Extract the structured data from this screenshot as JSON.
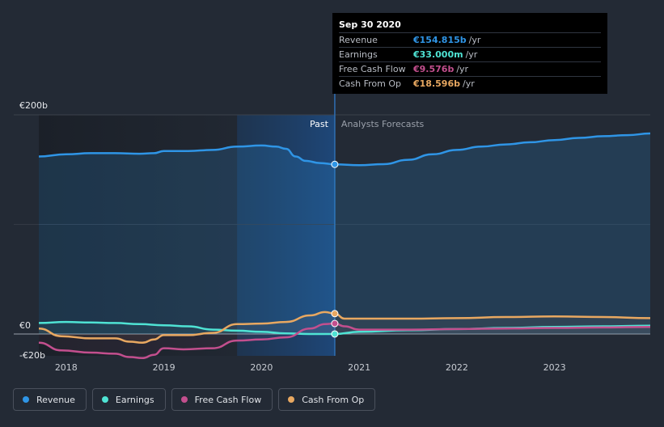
{
  "chart_data": {
    "type": "line",
    "currency_axis": {
      "ylim": [
        -20,
        200
      ],
      "y_ticks": [
        {
          "value": 200,
          "label": "€200b"
        },
        {
          "value": 0,
          "label": "€0"
        },
        {
          "value": -20,
          "label": "-€20b"
        }
      ]
    },
    "x_ticks": [
      {
        "value": 2018,
        "label": "2018"
      },
      {
        "value": 2019,
        "label": "2019"
      },
      {
        "value": 2020,
        "label": "2020"
      },
      {
        "value": 2021,
        "label": "2021"
      },
      {
        "value": 2022,
        "label": "2022"
      },
      {
        "value": 2023,
        "label": "2023"
      }
    ],
    "xlim": [
      2017.72,
      2023.98
    ],
    "divider": {
      "x": 2020.75,
      "past_label": "Past",
      "forecast_label": "Analysts Forecasts"
    },
    "highlight_range": [
      2019.75,
      2020.75
    ],
    "series": [
      {
        "name": "Revenue",
        "color": "#2f95e6",
        "x": [
          2017.72,
          2018.0,
          2018.25,
          2018.5,
          2018.75,
          2018.9,
          2019.0,
          2019.25,
          2019.5,
          2019.75,
          2020.0,
          2020.15,
          2020.25,
          2020.35,
          2020.45,
          2020.6,
          2020.75,
          2021.0,
          2021.25,
          2021.5,
          2021.75,
          2022.0,
          2022.25,
          2022.5,
          2022.75,
          2023.0,
          2023.25,
          2023.5,
          2023.75,
          2023.98
        ],
        "values": [
          162,
          164,
          165,
          165,
          164.5,
          165,
          167,
          167,
          168,
          171,
          172,
          171,
          169,
          162,
          158,
          156,
          154.8,
          154,
          155,
          159,
          164,
          168,
          171,
          173,
          175,
          177,
          179,
          180.5,
          181.5,
          183
        ]
      },
      {
        "name": "Earnings",
        "color": "#4fe3d4",
        "x": [
          2017.72,
          2018.0,
          2018.25,
          2018.5,
          2018.75,
          2019.0,
          2019.25,
          2019.5,
          2019.75,
          2020.0,
          2020.25,
          2020.5,
          2020.75,
          2021.0,
          2021.5,
          2022.0,
          2022.5,
          2023.0,
          2023.5,
          2023.98
        ],
        "values": [
          10,
          11,
          10.5,
          10,
          9,
          8,
          7,
          4,
          3,
          2,
          0.5,
          0,
          0.033,
          2,
          3.5,
          4.5,
          5.5,
          6.5,
          7,
          7.5
        ]
      },
      {
        "name": "Free Cash Flow",
        "color": "#c34f8e",
        "x": [
          2017.72,
          2017.95,
          2018.25,
          2018.5,
          2018.65,
          2018.78,
          2018.9,
          2019.0,
          2019.2,
          2019.5,
          2019.75,
          2020.0,
          2020.25,
          2020.5,
          2020.65,
          2020.75,
          2020.85,
          2021.0,
          2021.5,
          2022.0,
          2022.5,
          2023.0,
          2023.5,
          2023.98
        ],
        "values": [
          -8,
          -15,
          -17,
          -18,
          -21,
          -22,
          -19,
          -13,
          -14,
          -13,
          -6,
          -5,
          -3,
          5,
          9,
          9.576,
          7,
          4,
          4,
          4.5,
          5,
          5.5,
          6,
          6.5
        ]
      },
      {
        "name": "Cash From Op",
        "color": "#e8a861",
        "x": [
          2017.72,
          2017.95,
          2018.25,
          2018.5,
          2018.65,
          2018.78,
          2018.9,
          2019.0,
          2019.25,
          2019.5,
          2019.75,
          2020.0,
          2020.25,
          2020.5,
          2020.65,
          2020.75,
          2020.85,
          2021.0,
          2021.5,
          2022.0,
          2022.5,
          2023.0,
          2023.5,
          2023.98
        ],
        "values": [
          5,
          -2,
          -4,
          -4,
          -7,
          -8,
          -5,
          -1,
          -1,
          1,
          9,
          9.5,
          11,
          17,
          20,
          18.596,
          14,
          14,
          14,
          14.5,
          15.5,
          16,
          15.5,
          14.5
        ]
      }
    ],
    "tooltip": {
      "date": "Sep 30 2020",
      "rows": [
        {
          "label": "Revenue",
          "value": "€154.815b",
          "unit": "/yr",
          "color": "#2f95e6"
        },
        {
          "label": "Earnings",
          "value": "€33.000m",
          "unit": "/yr",
          "color": "#4fe3d4"
        },
        {
          "label": "Free Cash Flow",
          "value": "€9.576b",
          "unit": "/yr",
          "color": "#c34f8e"
        },
        {
          "label": "Cash From Op",
          "value": "€18.596b",
          "unit": "/yr",
          "color": "#e8a861"
        }
      ]
    }
  },
  "legend": [
    {
      "label": "Revenue",
      "color": "#2f95e6"
    },
    {
      "label": "Earnings",
      "color": "#4fe3d4"
    },
    {
      "label": "Free Cash Flow",
      "color": "#c34f8e"
    },
    {
      "label": "Cash From Op",
      "color": "#e8a861"
    }
  ]
}
